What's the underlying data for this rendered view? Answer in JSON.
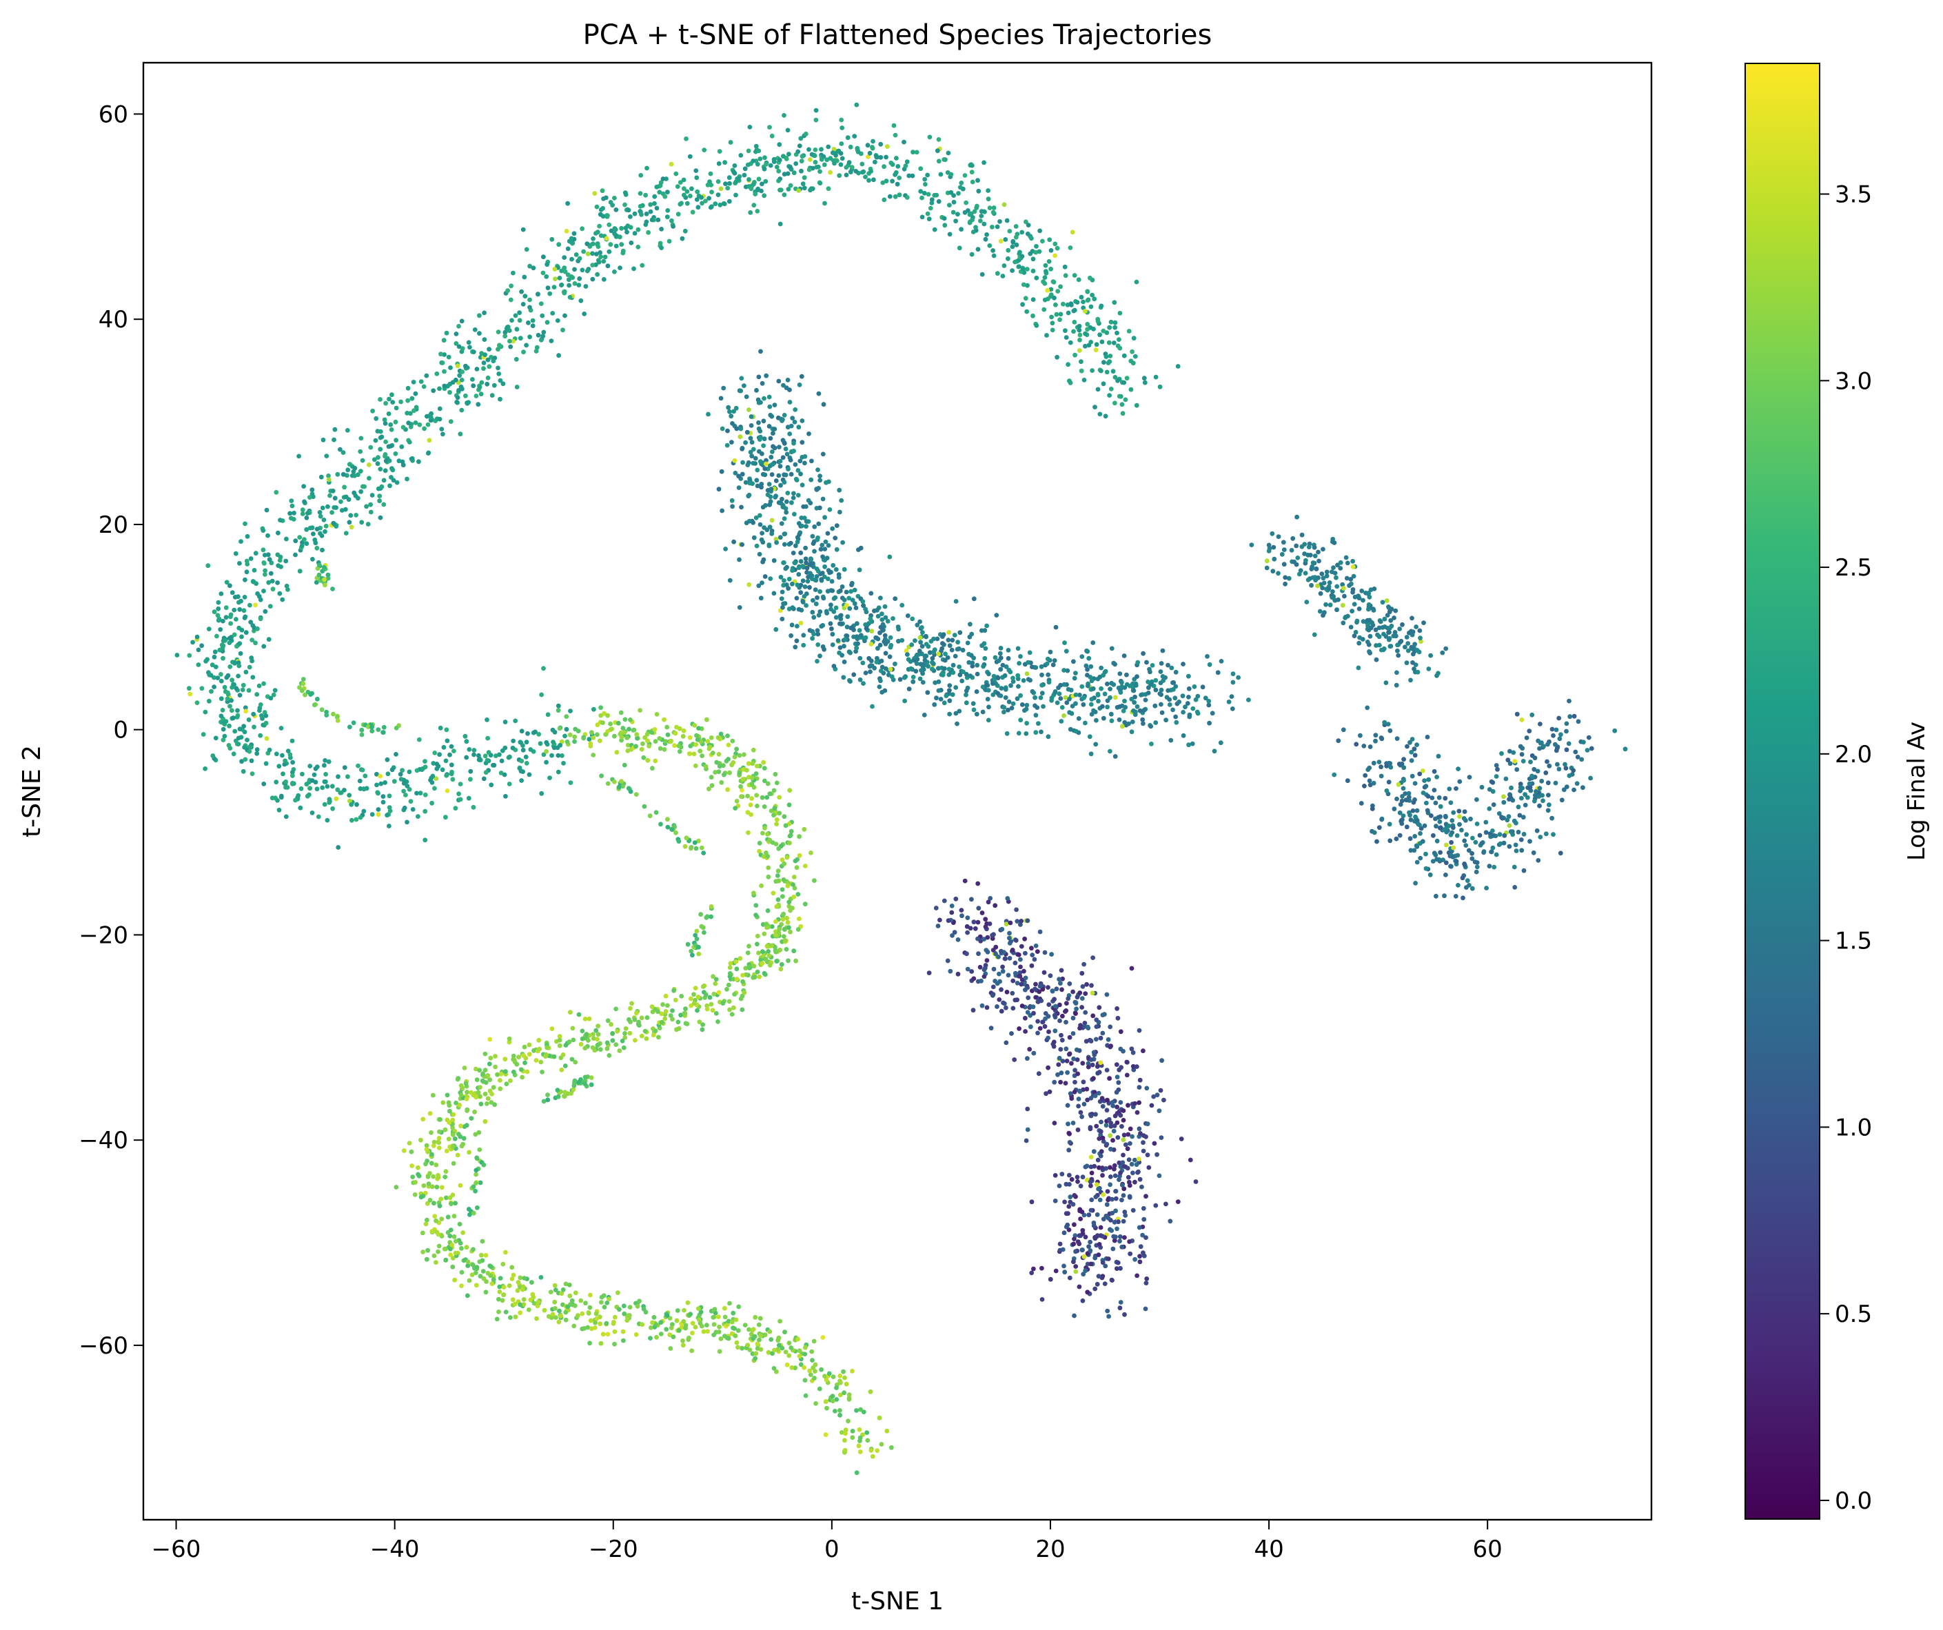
{
  "chart_data": {
    "type": "scatter",
    "title": "PCA + t-SNE of Flattened Species Trajectories",
    "xlabel": "t-SNE 1",
    "ylabel": "t-SNE 2",
    "xlim": [
      -63,
      75
    ],
    "ylim": [
      -77,
      65
    ],
    "x_ticks": [
      -60,
      -40,
      -20,
      0,
      20,
      40,
      60
    ],
    "y_ticks": [
      -60,
      -40,
      -20,
      0,
      20,
      40,
      60
    ],
    "x_tick_labels": [
      "−60",
      "−40",
      "−20",
      "0",
      "20",
      "40",
      "60"
    ],
    "y_tick_labels": [
      "−60",
      "−40",
      "−20",
      "0",
      "20",
      "40",
      "60"
    ],
    "grid": false,
    "colormap": "viridis",
    "colormap_stops": [
      "#440154",
      "#482878",
      "#3e4989",
      "#31688e",
      "#26828e",
      "#1f9e89",
      "#35b779",
      "#6ece58",
      "#b5de2b",
      "#fde725"
    ],
    "colorbar": {
      "label": "Log Final Av",
      "range": [
        -0.05,
        3.85
      ],
      "ticks": [
        0.0,
        0.5,
        1.0,
        1.5,
        2.0,
        2.5,
        3.0,
        3.5
      ],
      "tick_labels": [
        "0.0",
        "0.5",
        "1.0",
        "1.5",
        "2.0",
        "2.5",
        "3.0",
        "3.5"
      ]
    },
    "clusters": [
      {
        "id": "upper-arc",
        "path": [
          [
            27,
            32
          ],
          [
            24,
            38
          ],
          [
            20,
            44
          ],
          [
            15,
            49
          ],
          [
            10,
            53
          ],
          [
            5,
            55
          ],
          [
            0,
            56
          ],
          [
            -5,
            55
          ],
          [
            -10,
            53
          ],
          [
            -17,
            51
          ],
          [
            -23,
            46
          ],
          [
            -28,
            40
          ],
          [
            -35,
            33
          ],
          [
            -42,
            26
          ],
          [
            -48,
            20
          ],
          [
            -53,
            14
          ],
          [
            -56,
            6
          ],
          [
            -53,
            -3
          ],
          [
            -47,
            -6
          ],
          [
            -40,
            -6
          ],
          [
            -34,
            -4
          ],
          [
            -28,
            -2
          ],
          [
            -24,
            -0.5
          ]
        ],
        "spread": 1.8,
        "count": 1700,
        "color_range": [
          1.9,
          2.45
        ]
      },
      {
        "id": "s-curve",
        "path": [
          [
            -24,
            -0.5
          ],
          [
            -19,
            -0.5
          ],
          [
            -13,
            -1
          ],
          [
            -8,
            -4
          ],
          [
            -5,
            -9
          ],
          [
            -4,
            -15
          ],
          [
            -5,
            -21
          ],
          [
            -10,
            -26
          ],
          [
            -18,
            -29
          ],
          [
            -26,
            -31
          ],
          [
            -33,
            -35
          ],
          [
            -37,
            -43
          ],
          [
            -35,
            -51
          ],
          [
            -29,
            -55
          ],
          [
            -20,
            -57.5
          ],
          [
            -10,
            -58
          ],
          [
            -5,
            -60
          ],
          [
            0,
            -64
          ],
          [
            3,
            -70
          ]
        ],
        "spread": 1.1,
        "count": 1300,
        "color_range": [
          2.7,
          3.5
        ]
      },
      {
        "id": "middle-band",
        "path": [
          [
            -6,
            32
          ],
          [
            -5,
            24
          ],
          [
            -3,
            16
          ],
          [
            0,
            11
          ],
          [
            6,
            8
          ],
          [
            13,
            5
          ],
          [
            20,
            4
          ],
          [
            27,
            3
          ],
          [
            34,
            3
          ]
        ],
        "spread": 2.3,
        "count": 1150,
        "color_range": [
          1.35,
          2.0
        ]
      },
      {
        "id": "right-upper-band",
        "path": [
          [
            41,
            18
          ],
          [
            45,
            15
          ],
          [
            49,
            11
          ],
          [
            54,
            7
          ]
        ],
        "spread": 1.4,
        "count": 260,
        "color_range": [
          1.35,
          1.85
        ]
      },
      {
        "id": "right-lower-group",
        "path": [
          [
            51,
            -2
          ],
          [
            53,
            -8
          ],
          [
            57,
            -12
          ],
          [
            60,
            -11
          ],
          [
            64,
            -5
          ],
          [
            67,
            0
          ]
        ],
        "spread": 2.2,
        "count": 430,
        "color_range": [
          1.1,
          1.8
        ]
      },
      {
        "id": "lower-blob",
        "path": [
          [
            13,
            -19
          ],
          [
            17,
            -24
          ],
          [
            23,
            -30
          ],
          [
            26,
            -37
          ],
          [
            25,
            -44
          ],
          [
            24,
            -50
          ],
          [
            24,
            -54
          ]
        ],
        "spread": 2.5,
        "count": 760,
        "color_range": [
          0.3,
          1.3
        ]
      },
      {
        "id": "inner-arcs",
        "path": [
          [
            -47,
            16
          ],
          [
            -46,
            14
          ],
          [
            -49,
            5
          ],
          [
            -47,
            2
          ],
          [
            -44,
            0.5
          ],
          [
            -40,
            0
          ],
          [
            -21,
            -5
          ],
          [
            -19,
            -5.5
          ],
          [
            -15,
            -9
          ],
          [
            -12,
            -12
          ],
          [
            -11,
            -17
          ],
          [
            -13,
            -22
          ],
          [
            -26,
            -36
          ],
          [
            -22,
            -34
          ],
          [
            -33,
            -47
          ],
          [
            -32,
            -41
          ],
          [
            -28,
            -53
          ],
          [
            -22,
            -55
          ],
          [
            -15,
            -57
          ]
        ],
        "spread": 0.3,
        "count": 190,
        "color_range": [
          2.4,
          3.3
        ]
      }
    ]
  }
}
